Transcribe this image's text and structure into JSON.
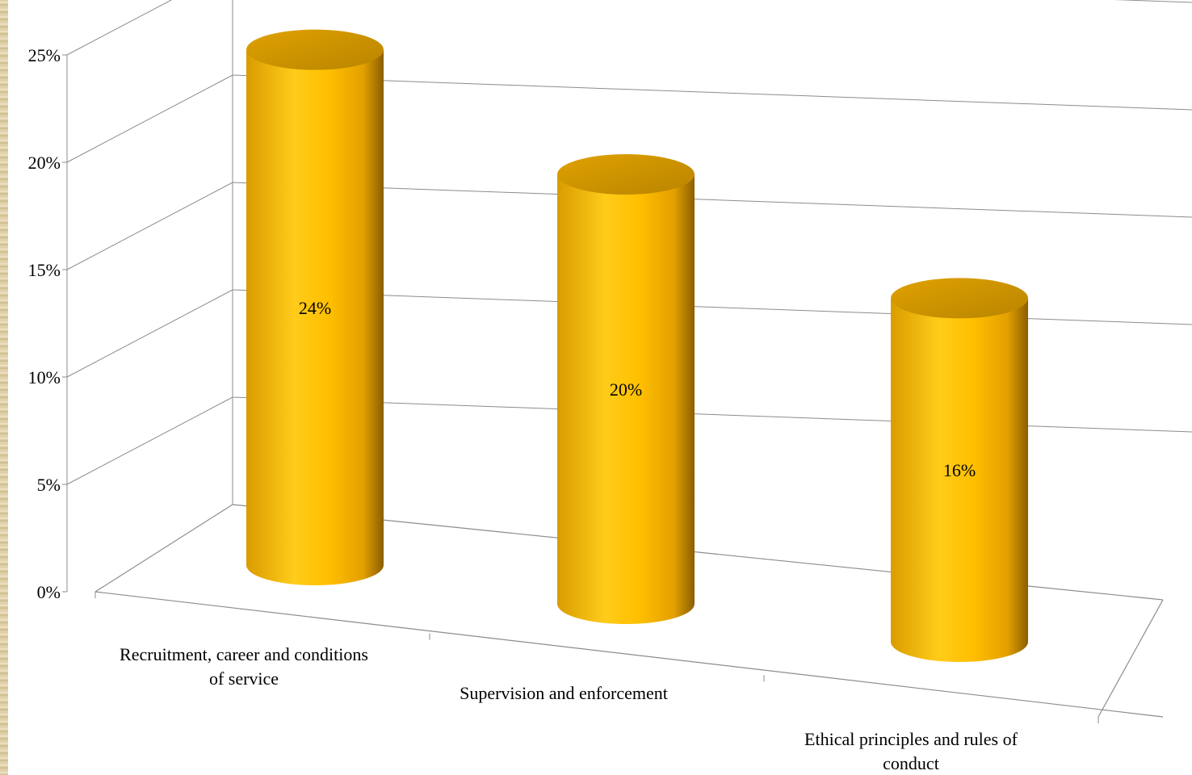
{
  "chart_data": {
    "type": "bar",
    "style": "3d-cylinder",
    "categories": [
      "Recruitment, career and conditions of service",
      "Supervision and enforcement",
      "Ethical principles and rules of conduct"
    ],
    "category_label_lines": [
      [
        "Recruitment, career and conditions",
        "of service"
      ],
      [
        "Supervision and enforcement"
      ],
      [
        "Ethical principles and rules of",
        "conduct"
      ]
    ],
    "series": [
      {
        "values": [
          24,
          20,
          16
        ]
      }
    ],
    "data_labels": [
      "24%",
      "20%",
      "16%"
    ],
    "y_ticks": [
      0,
      5,
      10,
      15,
      20,
      25
    ],
    "y_tick_labels": [
      "0%",
      "5%",
      "10%",
      "15%",
      "20%",
      "25%"
    ],
    "ylim": [
      0,
      25
    ],
    "grid": true,
    "legend": "none",
    "bar_color": "#ffbf00",
    "bar_color_dark": "#c98f00"
  }
}
